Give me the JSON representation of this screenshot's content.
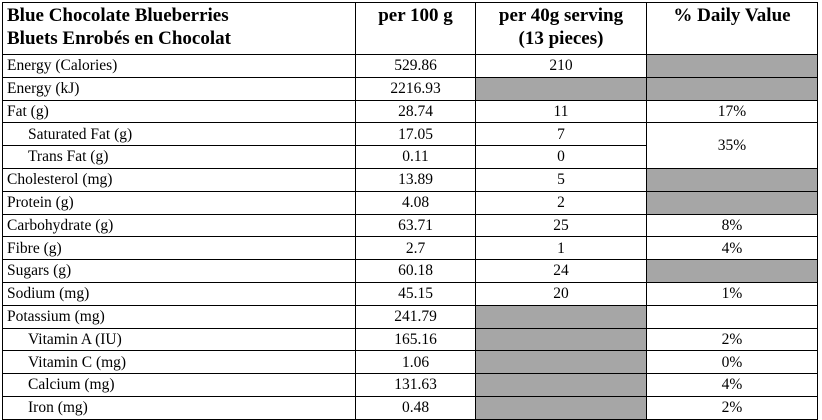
{
  "header": {
    "name_line1": "Blue Chocolate Blueberries",
    "name_line2": "Bluets Enrobés en Chocolat",
    "per100": "per 100 g",
    "serving_line1": "per 40g serving",
    "serving_line2": "(13 pieces)",
    "dv": "% Daily Value"
  },
  "rows": [
    {
      "label": "Energy (Calories)",
      "per100": "529.86",
      "serving": "210",
      "dv": ""
    },
    {
      "label": "Energy (kJ)",
      "per100": "2216.93",
      "serving": "",
      "dv": ""
    },
    {
      "label": "Fat (g)",
      "per100": "28.74",
      "serving": "11",
      "dv": "17%"
    },
    {
      "label": "Saturated Fat (g)",
      "per100": "17.05",
      "serving": "7",
      "dv": "35%"
    },
    {
      "label": "Trans Fat (g)",
      "per100": "0.11",
      "serving": "0",
      "dv": ""
    },
    {
      "label": "Cholesterol (mg)",
      "per100": "13.89",
      "serving": "5",
      "dv": ""
    },
    {
      "label": "Protein (g)",
      "per100": "4.08",
      "serving": "2",
      "dv": ""
    },
    {
      "label": "Carbohydrate (g)",
      "per100": "63.71",
      "serving": "25",
      "dv": "8%"
    },
    {
      "label": "Fibre (g)",
      "per100": "2.7",
      "serving": "1",
      "dv": "4%"
    },
    {
      "label": "Sugars (g)",
      "per100": "60.18",
      "serving": "24",
      "dv": ""
    },
    {
      "label": "Sodium (mg)",
      "per100": "45.15",
      "serving": "20",
      "dv": "1%"
    },
    {
      "label": "Potassium (mg)",
      "per100": "241.79",
      "serving": "",
      "dv": ""
    },
    {
      "label": "Vitamin A (IU)",
      "per100": "165.16",
      "serving": "",
      "dv": "2%"
    },
    {
      "label": "Vitamin C (mg)",
      "per100": "1.06",
      "serving": "",
      "dv": "0%"
    },
    {
      "label": "Calcium (mg)",
      "per100": "131.63",
      "serving": "",
      "dv": "4%"
    },
    {
      "label": "Iron (mg)",
      "per100": "0.48",
      "serving": "",
      "dv": "2%"
    }
  ]
}
